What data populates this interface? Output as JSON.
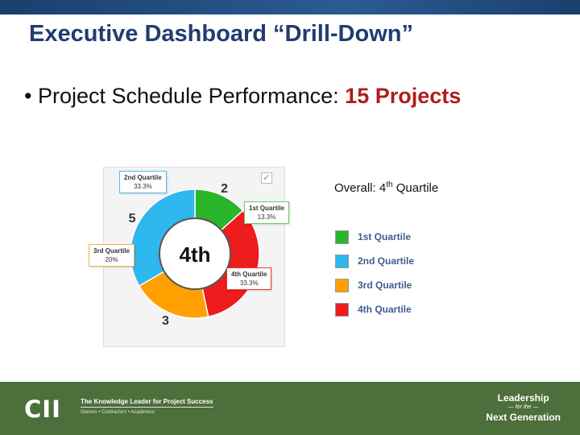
{
  "title": "Executive Dashboard “Drill-Down”",
  "bullet": {
    "marker": "•",
    "text": "Project Schedule Performance: ",
    "highlight": "15 Projects"
  },
  "chart_data": {
    "type": "pie",
    "style": "donut",
    "center_label": "4th",
    "total": 15,
    "slices": [
      {
        "label": "1st Quartile",
        "value": 2,
        "percent": "13.3%",
        "color": "#2bb52b"
      },
      {
        "label": "4th Quartile",
        "value": 5,
        "percent": "33.3%",
        "color": "#ee1c1c"
      },
      {
        "label": "3rd Quartile",
        "value": 3,
        "percent": "20%",
        "color": "#ffa000"
      },
      {
        "label": "2nd Quartile",
        "value": 5,
        "percent": "33.3%",
        "color": "#2eb8ee"
      }
    ],
    "legend": [
      {
        "label": "1st Quartile",
        "color": "#2bb52b"
      },
      {
        "label": "2nd Quartile",
        "color": "#2eb8ee"
      },
      {
        "label": "3rd Quartile",
        "color": "#ffa000"
      },
      {
        "label": "4th Quartile",
        "color": "#ee1c1c"
      }
    ]
  },
  "checkbox_glyph": "✓",
  "overall": {
    "prefix": "Overall: 4",
    "sup": "th",
    "suffix": " Quartile"
  },
  "footer": {
    "logo": "CII",
    "tagline": "The Knowledge Leader for Project Success",
    "subtag": "Owners • Contractors • Academics",
    "leadership_line1": "Leadership",
    "leadership_line2": "— for the —",
    "leadership_line3": "Next Generation"
  }
}
